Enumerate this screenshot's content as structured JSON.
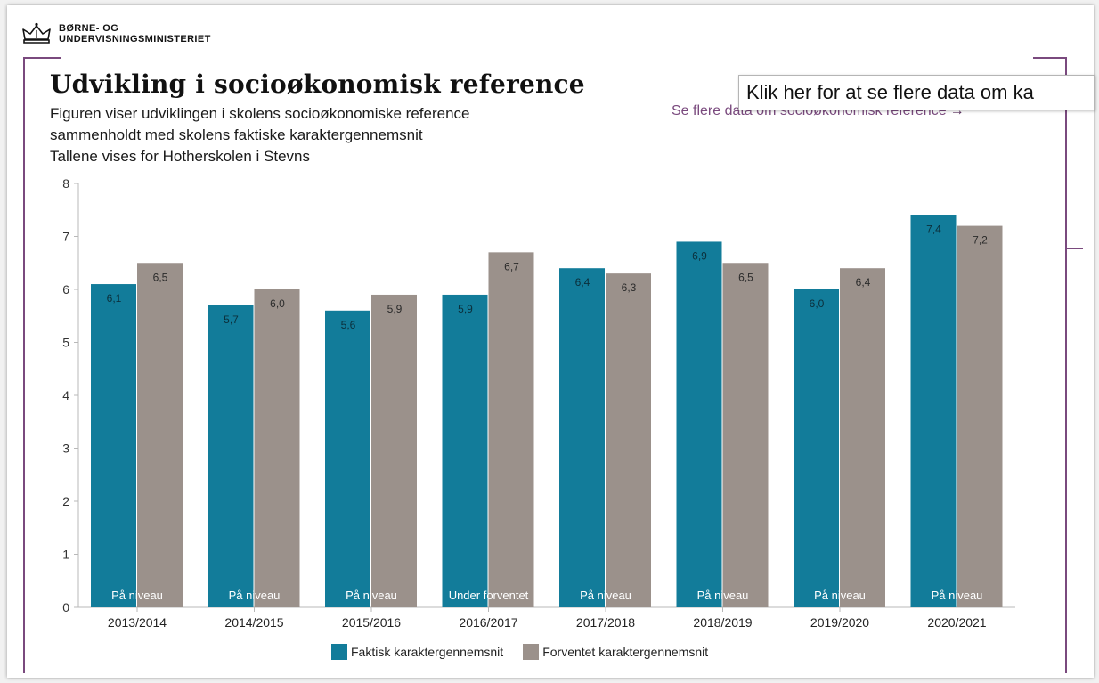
{
  "header": {
    "logo_line1": "BØRNE- OG",
    "logo_line2": "UNDERVISNINGSMINISTERIET"
  },
  "title": "Udvikling i socioøkonomisk reference",
  "subtitle_lines": [
    "Figuren viser udviklingen i skolens socioøkonomiske reference",
    "sammenholdt med skolens faktiske karaktergennemsnit",
    "Tallene vises for Hotherskolen i Stevns"
  ],
  "more_link": {
    "label": "Se flere data om socioøkonomisk reference",
    "arrow": "→"
  },
  "tooltip": "Klik her for at se flere data om ka",
  "colors": {
    "actual": "#127c9a",
    "expected": "#9b918b",
    "accent": "#7a4a7e",
    "axis": "#b8b8b8"
  },
  "chart_data": {
    "type": "bar",
    "title": "Udvikling i socioøkonomisk reference",
    "categories": [
      "2013/2014",
      "2014/2015",
      "2015/2016",
      "2016/2017",
      "2017/2018",
      "2018/2019",
      "2019/2020",
      "2020/2021"
    ],
    "series": [
      {
        "name": "Faktisk karaktergennemsnit",
        "values": [
          6.1,
          5.7,
          5.6,
          5.9,
          6.4,
          6.9,
          6.0,
          7.4
        ],
        "labels": [
          "6,1",
          "5,7",
          "5,6",
          "5,9",
          "6,4",
          "6,9",
          "6,0",
          "7,4"
        ]
      },
      {
        "name": "Forventet karaktergennemsnit",
        "values": [
          6.5,
          6.0,
          5.9,
          6.7,
          6.3,
          6.5,
          6.4,
          7.2
        ],
        "labels": [
          "6,5",
          "6,0",
          "5,9",
          "6,7",
          "6,3",
          "6,5",
          "6,4",
          "7,2"
        ]
      }
    ],
    "status_labels": [
      "På niveau",
      "På niveau",
      "På niveau",
      "Under forventet",
      "På niveau",
      "På niveau",
      "På niveau",
      "På niveau"
    ],
    "y_ticks": [
      "0",
      "1",
      "2",
      "3",
      "4",
      "5",
      "6",
      "7",
      "8"
    ],
    "ylim": [
      0,
      8
    ],
    "grid": false,
    "legend": "bottom"
  }
}
